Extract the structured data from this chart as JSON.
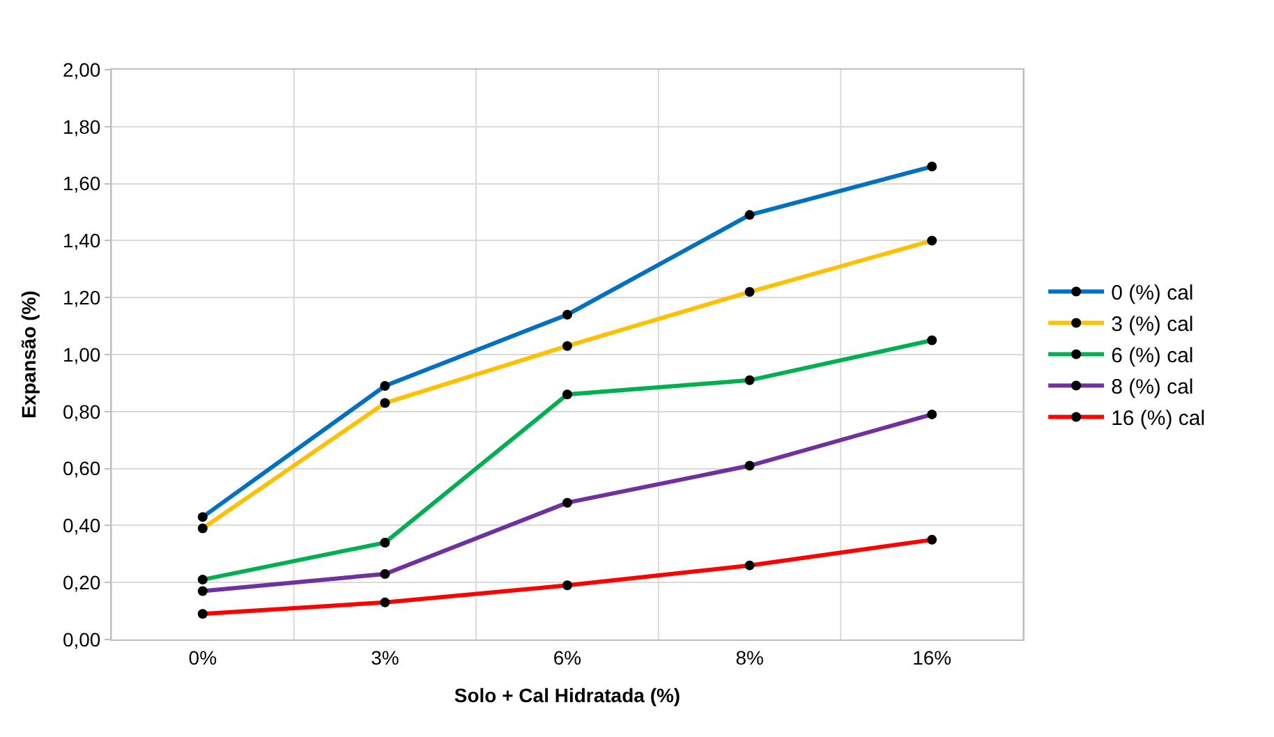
{
  "chart_data": {
    "type": "line",
    "xlabel": "Solo + Cal Hidratada (%)",
    "ylabel": "Expansão (%)",
    "categories": [
      "0%",
      "3%",
      "6%",
      "8%",
      "16%"
    ],
    "series": [
      {
        "name": "0 (%) cal",
        "color": "#0070c0",
        "values": [
          0.43,
          0.89,
          1.14,
          1.49,
          1.66
        ]
      },
      {
        "name": "3 (%) cal",
        "color": "#ffc000",
        "values": [
          0.39,
          0.83,
          1.03,
          1.22,
          1.4
        ]
      },
      {
        "name": "6 (%) cal",
        "color": "#00b050",
        "values": [
          0.21,
          0.34,
          0.86,
          0.91,
          1.05
        ]
      },
      {
        "name": "8 (%) cal",
        "color": "#7030a0",
        "values": [
          0.17,
          0.23,
          0.48,
          0.61,
          0.79
        ]
      },
      {
        "name": "16 (%) cal",
        "color": "#ff0000",
        "values": [
          0.09,
          0.13,
          0.19,
          0.26,
          0.35
        ]
      }
    ],
    "ylim": [
      0,
      2
    ],
    "yticks": [
      {
        "value": 0,
        "label": "0,00"
      },
      {
        "value": 0.2,
        "label": "0,20"
      },
      {
        "value": 0.4,
        "label": "0,40"
      },
      {
        "value": 0.6,
        "label": "0,60"
      },
      {
        "value": 0.8,
        "label": "0,80"
      },
      {
        "value": 1.0,
        "label": "1,00"
      },
      {
        "value": 1.2,
        "label": "1,20"
      },
      {
        "value": 1.4,
        "label": "1,40"
      },
      {
        "value": 1.6,
        "label": "1,60"
      },
      {
        "value": 1.8,
        "label": "1,80"
      },
      {
        "value": 2.0,
        "label": "2,00"
      }
    ],
    "grid": true,
    "legend": "right",
    "marker": "circle",
    "line_style": "solid"
  }
}
